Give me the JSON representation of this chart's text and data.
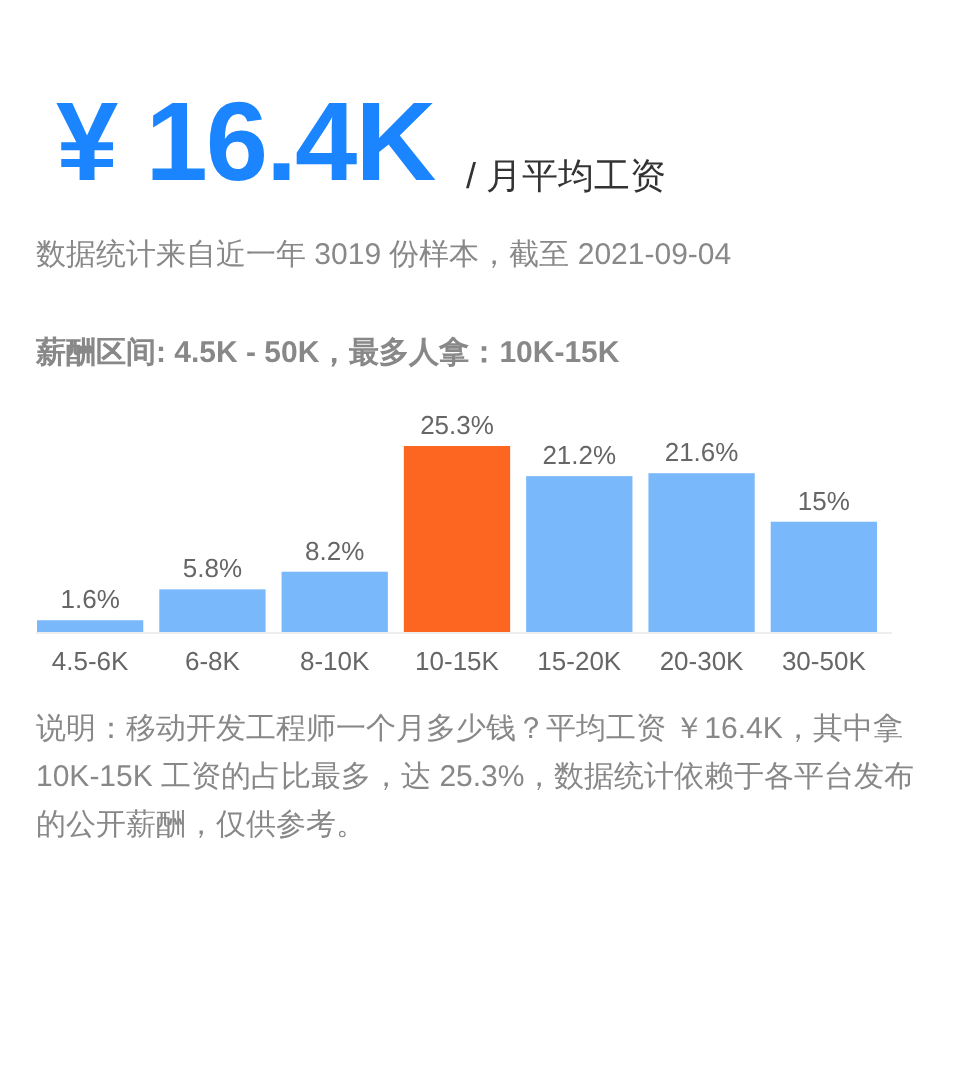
{
  "chart_data": {
    "type": "bar",
    "title": "¥ 16.4K",
    "subtitle": "/ 月平均工资",
    "annotations": [
      "数据统计来自近一年 3019 份样本，截至 2021-09-04",
      "薪酬区间: 4.5K - 50K，最多人拿：10K-15K",
      "说明：移动开发工程师一个月多少钱？平均工资 ￥16.4K，其中拿 10K-15K 工资的占比最多，达 25.3%，数据统计依赖于各平台发布的公开薪酬，仅供参考。"
    ],
    "categories": [
      "4.5-6K",
      "6-8K",
      "8-10K",
      "10-15K",
      "15-20K",
      "20-30K",
      "30-50K"
    ],
    "values": [
      1.6,
      5.8,
      8.2,
      25.3,
      21.2,
      21.6,
      15
    ],
    "value_labels": [
      "1.6%",
      "5.8%",
      "8.2%",
      "25.3%",
      "21.2%",
      "21.6%",
      "15%"
    ],
    "colors": [
      "#7ab8fc",
      "#7ab8fc",
      "#7ab8fc",
      "#fd6620",
      "#7ab8fc",
      "#7ab8fc",
      "#7ab8fc"
    ]
  }
}
